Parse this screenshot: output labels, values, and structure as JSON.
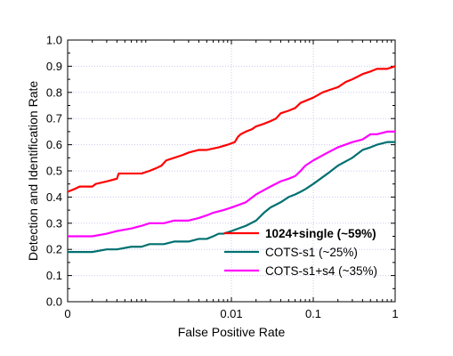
{
  "chart_data": {
    "type": "line",
    "xlabel": "False Positive Rate",
    "ylabel": "Detection and Identification Rate",
    "x_scale": "log",
    "xlim": [
      0.0001,
      1
    ],
    "ylim": [
      0,
      1
    ],
    "x_ticks": [
      {
        "value": 0.0001,
        "label": "0"
      },
      {
        "value": 0.01,
        "label": "0.01"
      },
      {
        "value": 0.1,
        "label": "0.1"
      },
      {
        "value": 1,
        "label": "1"
      }
    ],
    "y_ticks": [
      "0.0",
      "0.1",
      "0.2",
      "0.3",
      "0.4",
      "0.5",
      "0.6",
      "0.7",
      "0.8",
      "0.9",
      "1.0"
    ],
    "grid": true,
    "legend_position": "lower-right",
    "series": [
      {
        "name": "1024+single (~59%)",
        "color": "#ff0000",
        "bold_label": true,
        "points": [
          [
            0.0001,
            0.42
          ],
          [
            0.00012,
            0.43
          ],
          [
            0.00014,
            0.44
          ],
          [
            0.0002,
            0.44
          ],
          [
            0.00022,
            0.45
          ],
          [
            0.0003,
            0.46
          ],
          [
            0.0004,
            0.47
          ],
          [
            0.00042,
            0.49
          ],
          [
            0.0006,
            0.49
          ],
          [
            0.0008,
            0.49
          ],
          [
            0.001,
            0.5
          ],
          [
            0.0012,
            0.51
          ],
          [
            0.0014,
            0.52
          ],
          [
            0.0016,
            0.54
          ],
          [
            0.002,
            0.55
          ],
          [
            0.0025,
            0.56
          ],
          [
            0.003,
            0.57
          ],
          [
            0.004,
            0.58
          ],
          [
            0.005,
            0.58
          ],
          [
            0.007,
            0.59
          ],
          [
            0.009,
            0.6
          ],
          [
            0.011,
            0.61
          ],
          [
            0.012,
            0.63
          ],
          [
            0.013,
            0.64
          ],
          [
            0.015,
            0.65
          ],
          [
            0.018,
            0.66
          ],
          [
            0.02,
            0.67
          ],
          [
            0.025,
            0.68
          ],
          [
            0.03,
            0.69
          ],
          [
            0.035,
            0.7
          ],
          [
            0.04,
            0.72
          ],
          [
            0.05,
            0.73
          ],
          [
            0.06,
            0.74
          ],
          [
            0.07,
            0.76
          ],
          [
            0.1,
            0.78
          ],
          [
            0.13,
            0.8
          ],
          [
            0.16,
            0.81
          ],
          [
            0.2,
            0.82
          ],
          [
            0.25,
            0.84
          ],
          [
            0.3,
            0.85
          ],
          [
            0.4,
            0.87
          ],
          [
            0.5,
            0.88
          ],
          [
            0.6,
            0.89
          ],
          [
            0.8,
            0.89
          ],
          [
            1.0,
            0.9
          ]
        ]
      },
      {
        "name": "COTS-s1 (~25%)",
        "color": "#007070",
        "bold_label": false,
        "points": [
          [
            0.0001,
            0.19
          ],
          [
            0.0002,
            0.19
          ],
          [
            0.0003,
            0.2
          ],
          [
            0.0004,
            0.2
          ],
          [
            0.0006,
            0.21
          ],
          [
            0.0008,
            0.21
          ],
          [
            0.001,
            0.22
          ],
          [
            0.0015,
            0.22
          ],
          [
            0.002,
            0.23
          ],
          [
            0.003,
            0.23
          ],
          [
            0.004,
            0.24
          ],
          [
            0.005,
            0.24
          ],
          [
            0.006,
            0.25
          ],
          [
            0.007,
            0.26
          ],
          [
            0.008,
            0.26
          ],
          [
            0.01,
            0.27
          ],
          [
            0.015,
            0.29
          ],
          [
            0.02,
            0.31
          ],
          [
            0.025,
            0.34
          ],
          [
            0.03,
            0.36
          ],
          [
            0.04,
            0.38
          ],
          [
            0.05,
            0.4
          ],
          [
            0.06,
            0.41
          ],
          [
            0.07,
            0.42
          ],
          [
            0.08,
            0.43
          ],
          [
            0.1,
            0.45
          ],
          [
            0.15,
            0.49
          ],
          [
            0.2,
            0.52
          ],
          [
            0.3,
            0.55
          ],
          [
            0.4,
            0.58
          ],
          [
            0.5,
            0.59
          ],
          [
            0.6,
            0.6
          ],
          [
            0.8,
            0.61
          ],
          [
            1.0,
            0.61
          ]
        ]
      },
      {
        "name": "COTS-s1+s4 (~35%)",
        "color": "#ff00ff",
        "bold_label": false,
        "points": [
          [
            0.0001,
            0.25
          ],
          [
            0.0002,
            0.25
          ],
          [
            0.0003,
            0.26
          ],
          [
            0.0004,
            0.27
          ],
          [
            0.0006,
            0.28
          ],
          [
            0.0008,
            0.29
          ],
          [
            0.001,
            0.3
          ],
          [
            0.0015,
            0.3
          ],
          [
            0.002,
            0.31
          ],
          [
            0.003,
            0.31
          ],
          [
            0.004,
            0.32
          ],
          [
            0.005,
            0.33
          ],
          [
            0.006,
            0.34
          ],
          [
            0.008,
            0.35
          ],
          [
            0.01,
            0.36
          ],
          [
            0.015,
            0.38
          ],
          [
            0.02,
            0.41
          ],
          [
            0.03,
            0.44
          ],
          [
            0.04,
            0.46
          ],
          [
            0.05,
            0.47
          ],
          [
            0.06,
            0.48
          ],
          [
            0.07,
            0.5
          ],
          [
            0.08,
            0.52
          ],
          [
            0.1,
            0.54
          ],
          [
            0.15,
            0.57
          ],
          [
            0.2,
            0.59
          ],
          [
            0.3,
            0.61
          ],
          [
            0.4,
            0.62
          ],
          [
            0.5,
            0.64
          ],
          [
            0.6,
            0.64
          ],
          [
            0.8,
            0.65
          ],
          [
            1.0,
            0.65
          ]
        ]
      }
    ]
  }
}
